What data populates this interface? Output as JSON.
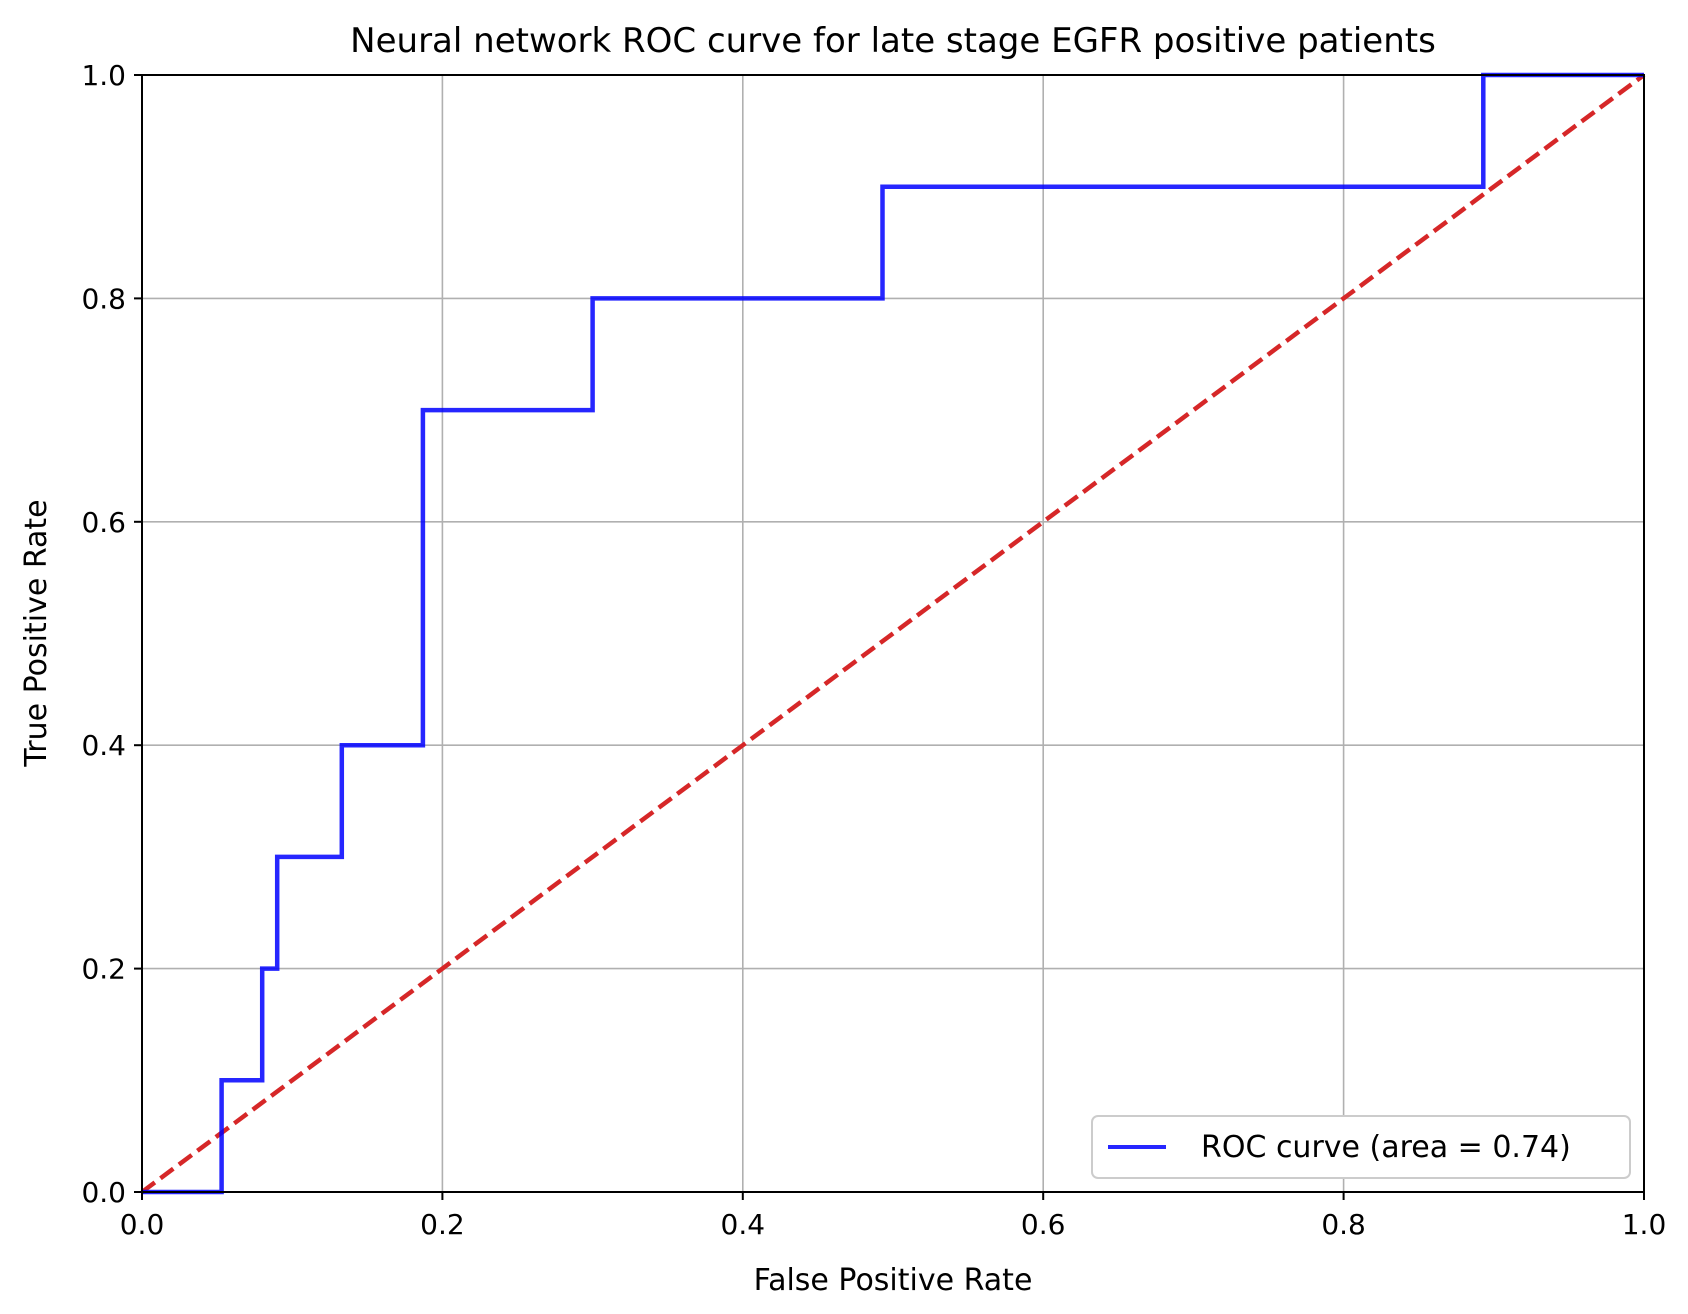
{
  "chart_data": {
    "type": "line",
    "title": "Neural network ROC curve for late stage EGFR positive patients",
    "xlabel": "False Positive Rate",
    "ylabel": "True Positive Rate",
    "xlim": [
      0.0,
      1.0
    ],
    "ylim": [
      0.0,
      1.0
    ],
    "xticks": [
      0.0,
      0.2,
      0.4,
      0.6,
      0.8,
      1.0
    ],
    "yticks": [
      0.0,
      0.2,
      0.4,
      0.6,
      0.8,
      1.0
    ],
    "xtick_labels": [
      "0.0",
      "0.2",
      "0.4",
      "0.6",
      "0.8",
      "1.0"
    ],
    "ytick_labels": [
      "0.0",
      "0.2",
      "0.4",
      "0.6",
      "0.8",
      "1.0"
    ],
    "grid": true,
    "legend_position": "bottom-right",
    "series": [
      {
        "name": "ROC curve (area = 0.74)",
        "color": "#0000ff",
        "style": "solid-step",
        "x": [
          0.0,
          0.053,
          0.053,
          0.08,
          0.08,
          0.09,
          0.09,
          0.133,
          0.133,
          0.187,
          0.187,
          0.3,
          0.3,
          0.493,
          0.493,
          0.893,
          0.893,
          1.0
        ],
        "y": [
          0.0,
          0.0,
          0.1,
          0.1,
          0.2,
          0.2,
          0.3,
          0.3,
          0.4,
          0.4,
          0.7,
          0.7,
          0.8,
          0.8,
          0.9,
          0.9,
          1.0,
          1.0
        ]
      }
    ],
    "reference_line": {
      "color": "#d62728",
      "style": "dashed",
      "x": [
        0.0,
        1.0
      ],
      "y": [
        0.0,
        1.0
      ]
    }
  }
}
